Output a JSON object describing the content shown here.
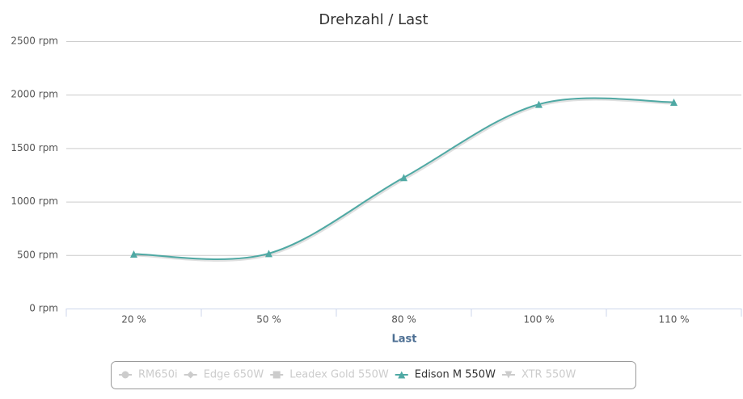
{
  "chart_data": {
    "type": "line",
    "title": "Drehzahl / Last",
    "x_label": "Last",
    "categories": [
      "20 %",
      "50 %",
      "80 %",
      "100 %",
      "110 %"
    ],
    "ylim": [
      0,
      2500
    ],
    "yticks": [
      {
        "value": 0,
        "label": "0 rpm"
      },
      {
        "value": 500,
        "label": "500 rpm"
      },
      {
        "value": 1000,
        "label": "1000 rpm"
      },
      {
        "value": 1500,
        "label": "1500 rpm"
      },
      {
        "value": 2000,
        "label": "2000 rpm"
      },
      {
        "value": 2500,
        "label": "2500 rpm"
      }
    ],
    "grid": true,
    "smooth": true,
    "legend": "bottom",
    "series": [
      {
        "name": "RM650i",
        "marker": "circle",
        "visible": false,
        "color": "#cccccc"
      },
      {
        "name": "Edge 650W",
        "marker": "diamond",
        "visible": false,
        "color": "#cccccc"
      },
      {
        "name": "Leadex Gold 550W",
        "marker": "square",
        "visible": false,
        "color": "#cccccc"
      },
      {
        "name": "Edison M 550W",
        "marker": "triangle",
        "visible": true,
        "color": "#4fa9a4",
        "values": [
          510,
          515,
          1225,
          1910,
          1930
        ]
      },
      {
        "name": "XTR 550W",
        "marker": "triangle-down",
        "visible": false,
        "color": "#cccccc"
      }
    ]
  }
}
